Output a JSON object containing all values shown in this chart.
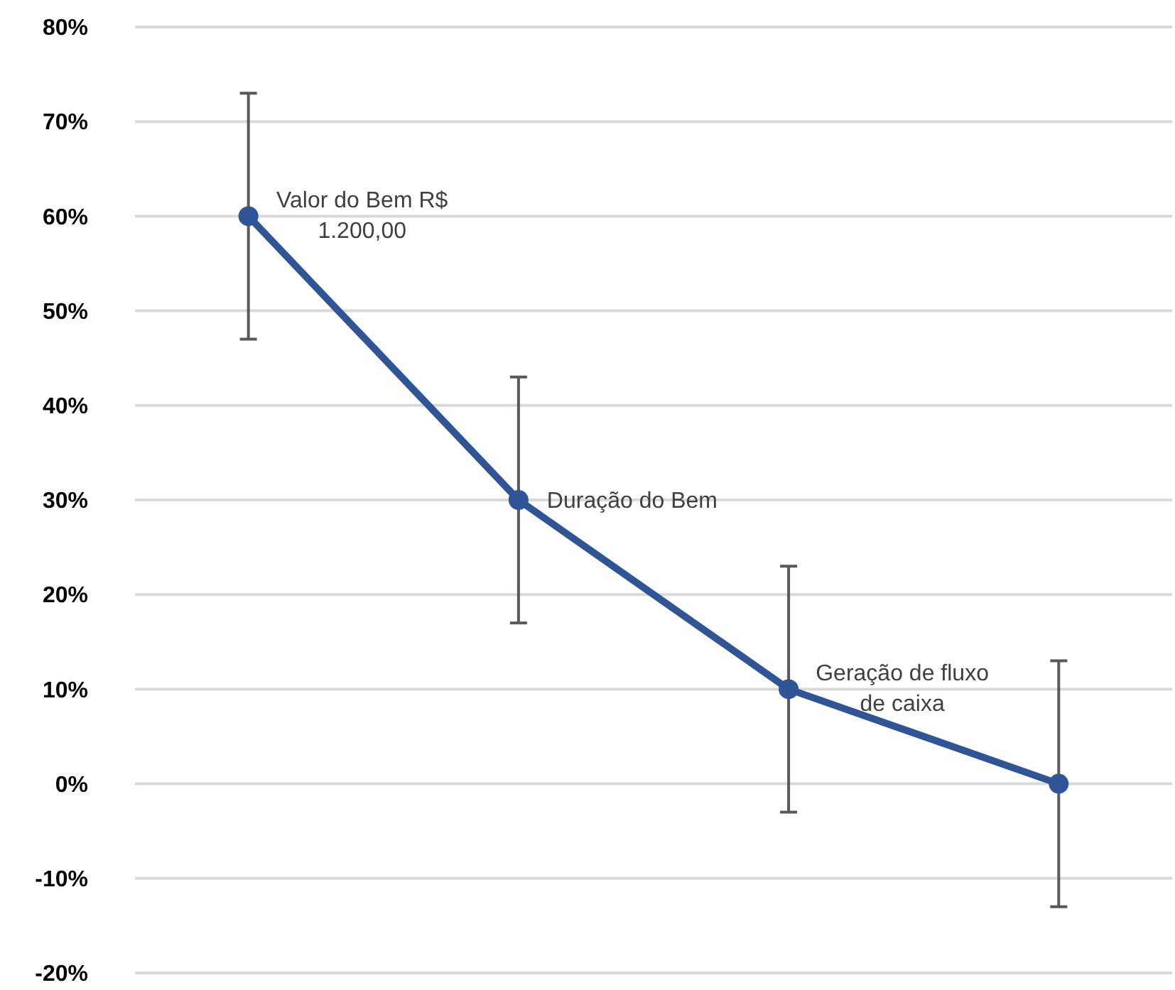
{
  "chart_data": {
    "type": "line",
    "categories": [
      null,
      null,
      null,
      null
    ],
    "series": [
      {
        "color": "#2f5597",
        "values": [
          60,
          30,
          10,
          0
        ],
        "errors": [
          13,
          13,
          13,
          13
        ]
      }
    ],
    "ylim": [
      -20,
      80
    ],
    "yticks": [
      {
        "value": -20,
        "label": "-20%"
      },
      {
        "value": -10,
        "label": "-10%"
      },
      {
        "value": 0,
        "label": "0%"
      },
      {
        "value": 10,
        "label": "10%"
      },
      {
        "value": 20,
        "label": "20%"
      },
      {
        "value": 30,
        "label": "30%"
      },
      {
        "value": 40,
        "label": "40%"
      },
      {
        "value": 50,
        "label": "50%"
      },
      {
        "value": 60,
        "label": "60%"
      },
      {
        "value": 70,
        "label": "70%"
      },
      {
        "value": 80,
        "label": "80%"
      }
    ],
    "grid": "y",
    "marker": "circle",
    "line_style": "solid",
    "annotations": [
      "Valor do Bem R$ 1.200,00",
      "Duração do Bem",
      "Geração de fluxo de caixa"
    ]
  }
}
